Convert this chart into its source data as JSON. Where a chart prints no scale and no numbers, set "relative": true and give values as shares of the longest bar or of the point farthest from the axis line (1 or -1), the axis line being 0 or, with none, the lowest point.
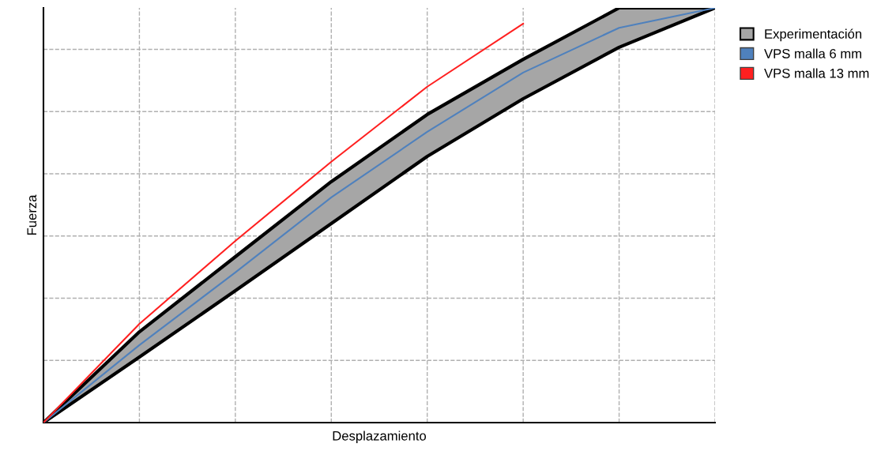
{
  "chart_data": {
    "type": "line",
    "relative": true,
    "xlabel": "Desplazamiento",
    "ylabel": "Fuerza",
    "categories": [
      null,
      null,
      null,
      null,
      null,
      null,
      null,
      null
    ],
    "series": [
      {
        "name": "Experimentación",
        "type": "area",
        "color": "#a6a6a6",
        "values": [
          null,
          null,
          null,
          null,
          null,
          null,
          null,
          null
        ],
        "lower": [
          0,
          0.158,
          0.318,
          0.48,
          0.642,
          0.781,
          0.905,
          1
        ],
        "upper": [
          0,
          0.219,
          0.4,
          0.581,
          0.743,
          0.876,
          1,
          1
        ]
      },
      {
        "name": "VPS malla 6 mm",
        "color": "#4f81bd",
        "values": [
          0,
          0.187,
          0.362,
          0.543,
          0.701,
          0.844,
          0.952,
          1
        ]
      },
      {
        "name": "VPS malla 13 mm",
        "color": "#ff2020",
        "values": [
          0,
          0.238,
          0.438,
          0.629,
          0.81,
          0.962,
          null,
          null
        ]
      }
    ],
    "grid": true,
    "legend": "right"
  }
}
